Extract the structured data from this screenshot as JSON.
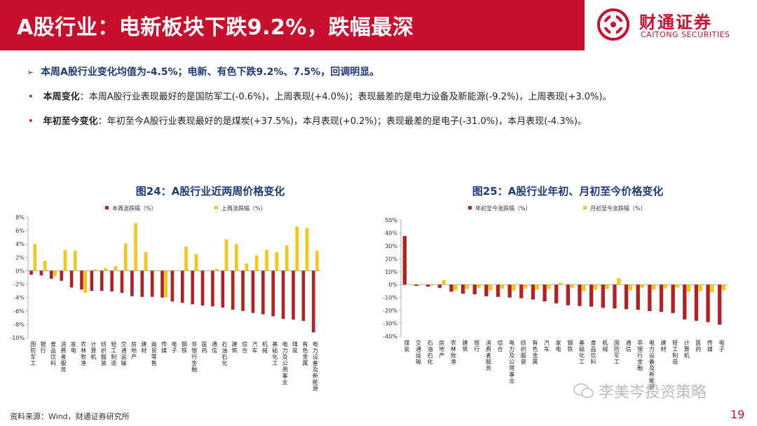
{
  "header": {
    "title": "A股行业：电新板块下跌9.2%，跌幅最深",
    "logo_cn": "财通证券",
    "logo_en": "CAITONG SECURITIES",
    "brand_color": "#c8102e"
  },
  "summary": {
    "headline_icon": "arrow-right-icon",
    "headline": "本周A股行业变化均值为-4.5%；电新、有色下跌9.2%、7.5%，回调明显。",
    "bullets": [
      {
        "label": "本周变化",
        "text": "：本周A股行业表现最好的是国防军工(-0.6%)，上周表现(+4.0%)；表现最差的是电力设备及新能源(-9.2%)，上周表现(+3.0%)。"
      },
      {
        "label": "年初至今变化",
        "text": "：年初至今A股行业表现最好的是煤炭(+37.5%)，本月表现(+0.2%)；表现最差的是电子(-31.0%)，本月表现(-4.3%)。"
      }
    ]
  },
  "chart_data": [
    {
      "type": "bar",
      "title": "图24：A股行业近两周价格变化",
      "categories": [
        "国防军工",
        "银行",
        "食品饮料",
        "消费者服务",
        "家电",
        "农林牧渔",
        "计算机",
        "纺织服装",
        "轻工制造",
        "交通运输",
        "房地产",
        "建材",
        "商贸零售",
        "传媒",
        "电子",
        "钢铁",
        "非银行金融",
        "医药",
        "通信",
        "石油石化",
        "建筑",
        "综合",
        "汽车",
        "机械",
        "基础化工",
        "电力及公用事业",
        "煤炭",
        "有色金属",
        "电力设备及新能源"
      ],
      "series": [
        {
          "name": "本周涨跌幅（%）",
          "color": "#b22222",
          "values": [
            -0.6,
            -0.7,
            -1.2,
            -1.5,
            -2.5,
            -2.8,
            -3.0,
            -3.0,
            -3.1,
            -3.3,
            -3.8,
            -3.9,
            -3.9,
            -4.0,
            -4.6,
            -4.8,
            -5.0,
            -5.2,
            -5.3,
            -5.5,
            -5.8,
            -6.0,
            -6.3,
            -6.5,
            -6.8,
            -7.2,
            -7.3,
            -7.5,
            -9.2
          ]
        },
        {
          "name": "上周涨跌幅（%）",
          "color": "#f5c518",
          "values": [
            4.0,
            1.5,
            -0.8,
            3.1,
            3.0,
            -3.3,
            0.2,
            0.4,
            0.7,
            4.1,
            7.1,
            2.8,
            0.0,
            -4.0,
            0.0,
            3.6,
            2.5,
            0.0,
            0.3,
            4.7,
            4.0,
            1.1,
            2.3,
            3.1,
            2.8,
            3.8,
            6.6,
            6.4,
            3.0
          ]
        }
      ],
      "ylim": [
        -10,
        8
      ],
      "yticks": [
        "8%",
        "6%",
        "4%",
        "2%",
        "0%",
        "-2%",
        "-4%",
        "-6%",
        "-8%",
        "-10%"
      ],
      "ytick_values": [
        8,
        6,
        4,
        2,
        0,
        -2,
        -4,
        -6,
        -8,
        -10
      ],
      "legend": "top"
    },
    {
      "type": "bar",
      "title": "图25：A股行业年初、月初至今价格变化",
      "categories": [
        "煤炭",
        "交通运输",
        "石油石化",
        "房地产",
        "农林牧渔",
        "建筑",
        "银行",
        "消费者服务",
        "综合",
        "电力及公用事业",
        "纺织服装",
        "有色金属",
        "汽车",
        "家电",
        "钢铁",
        "基础化工",
        "食品饮料",
        "机械",
        "国防军工",
        "通信",
        "非银行金融",
        "电力设备及新能源",
        "建材",
        "轻工制造",
        "计算机",
        "医药",
        "传媒",
        "电子"
      ],
      "series": [
        {
          "name": "年初至今涨跌幅（%）",
          "color": "#b22222",
          "values": [
            37.5,
            -1.0,
            -1.5,
            -2.5,
            -5.5,
            -7.0,
            -7.5,
            -9.0,
            -9.5,
            -10.0,
            -10.5,
            -11.5,
            -13.0,
            -14.5,
            -16.0,
            -16.5,
            -17.0,
            -18.0,
            -18.5,
            -19.0,
            -19.5,
            -20.5,
            -21.0,
            -22.0,
            -27.0,
            -28.0,
            -29.0,
            -31.0
          ]
        },
        {
          "name": "月初至今涨跌幅（%）",
          "color": "#f5c518",
          "values": [
            0.2,
            -0.5,
            -0.8,
            3.5,
            -4.5,
            -3.5,
            -2.5,
            -4.5,
            -3.0,
            -4.5,
            -3.0,
            -4.0,
            -3.5,
            1.5,
            -2.5,
            -5.0,
            -4.0,
            -3.5,
            5.0,
            -4.5,
            -2.5,
            -4.0,
            -3.0,
            -2.5,
            -5.5,
            -5.0,
            -6.0,
            -4.3
          ]
        }
      ],
      "ylim": [
        -40,
        50
      ],
      "yticks": [
        "50%",
        "40%",
        "30%",
        "20%",
        "10%",
        "0%",
        "-10%",
        "-20%",
        "-30%",
        "-40%"
      ],
      "ytick_values": [
        50,
        40,
        30,
        20,
        10,
        0,
        -10,
        -20,
        -30,
        -40
      ],
      "legend": "top"
    }
  ],
  "footer": {
    "source": "资料来源：Wind，财通证券研究所",
    "watermark": "李美岑投资策略",
    "page_number": "19"
  }
}
